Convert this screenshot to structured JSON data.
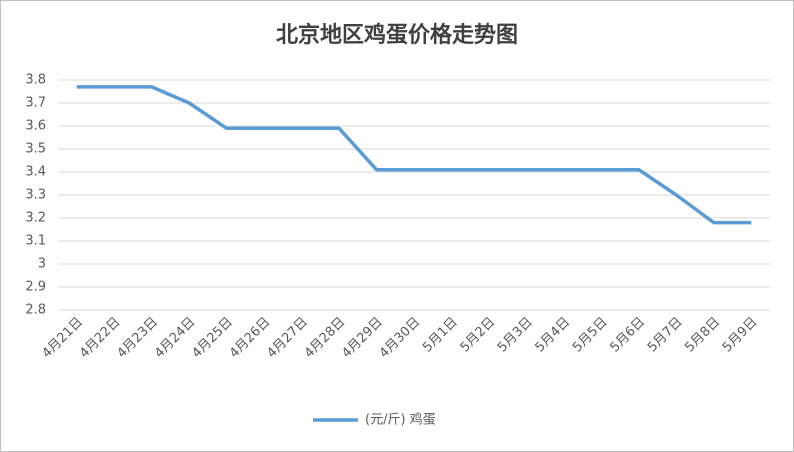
{
  "chart_data": {
    "type": "line",
    "title": "北京地区鸡蛋价格走势图",
    "categories": [
      "4月21日",
      "4月22日",
      "4月23日",
      "4月24日",
      "4月25日",
      "4月26日",
      "4月27日",
      "4月28日",
      "4月29日",
      "4月30日",
      "5月1日",
      "5月2日",
      "5月3日",
      "5月4日",
      "5月5日",
      "5月6日",
      "5月7日",
      "5月8日",
      "5月9日"
    ],
    "series": [
      {
        "name": "(元/斤) 鸡蛋",
        "color": "#5b9bd5",
        "values": [
          3.77,
          3.77,
          3.77,
          3.7,
          3.59,
          3.59,
          3.59,
          3.59,
          3.41,
          3.41,
          3.41,
          3.41,
          3.41,
          3.41,
          3.41,
          3.41,
          3.3,
          3.18,
          3.18
        ]
      }
    ],
    "ylim": [
      2.8,
      3.8
    ],
    "yticks": [
      2.8,
      2.9,
      3,
      3.1,
      3.2,
      3.3,
      3.4,
      3.5,
      3.6,
      3.7,
      3.8
    ],
    "grid": true,
    "legend": "bottom"
  }
}
